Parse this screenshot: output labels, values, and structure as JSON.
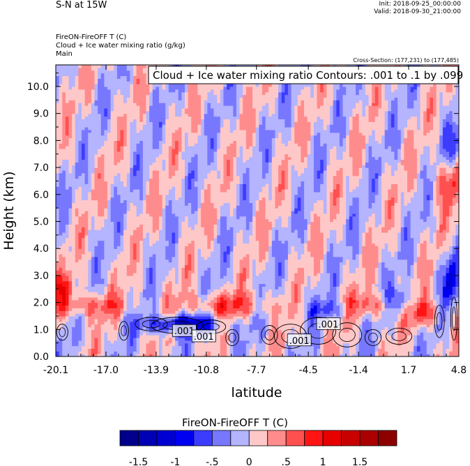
{
  "header": {
    "title": "S-N at 15W",
    "init": "Init: 2018-09-25_00:00:00",
    "valid": "Valid: 2018-09-30_21:00:00",
    "field_line1": "FireON-FireOFF T   (C)",
    "field_line2": "Cloud + Ice water mixing ratio   (g/kg)",
    "field_line3": "Main",
    "cross_section": "Cross-Section: (177,231) to (177,485)"
  },
  "chart_data": {
    "type": "heatmap",
    "title": "S-N at 15W",
    "contour_info": "Cloud + Ice water mixing ratio Contours: .001 to .1 by .099",
    "contour_labels": [
      ".001",
      ".001",
      ".001",
      ".001"
    ],
    "xlabel": "latitude",
    "ylabel": "Height (km)",
    "xlim": [
      -20.1,
      4.8
    ],
    "ylim": [
      0.0,
      10.8
    ],
    "x_ticks": [
      "-20.1",
      "-17.0",
      "-13.9",
      "-10.8",
      "-7.7",
      "-4.5",
      "-1.4",
      "1.7",
      "4.8"
    ],
    "y_ticks": [
      "0.0",
      "1.0",
      "2.0",
      "3.0",
      "4.0",
      "5.0",
      "6.0",
      "7.0",
      "8.0",
      "9.0",
      "10.0"
    ],
    "colorbar": {
      "title": "FireON-FireOFF T  (C)",
      "labels": [
        "-1.5",
        "-1",
        "-.5",
        "0",
        ".5",
        "1",
        "1.5"
      ],
      "colors": [
        "#00008c",
        "#0000b4",
        "#0000d2",
        "#0000f0",
        "#3c3cff",
        "#7878ff",
        "#b4b4ff",
        "#ffc8c8",
        "#ff8c8c",
        "#ff5050",
        "#ff1414",
        "#e60000",
        "#c80000",
        "#aa0000",
        "#8c0000"
      ]
    }
  }
}
